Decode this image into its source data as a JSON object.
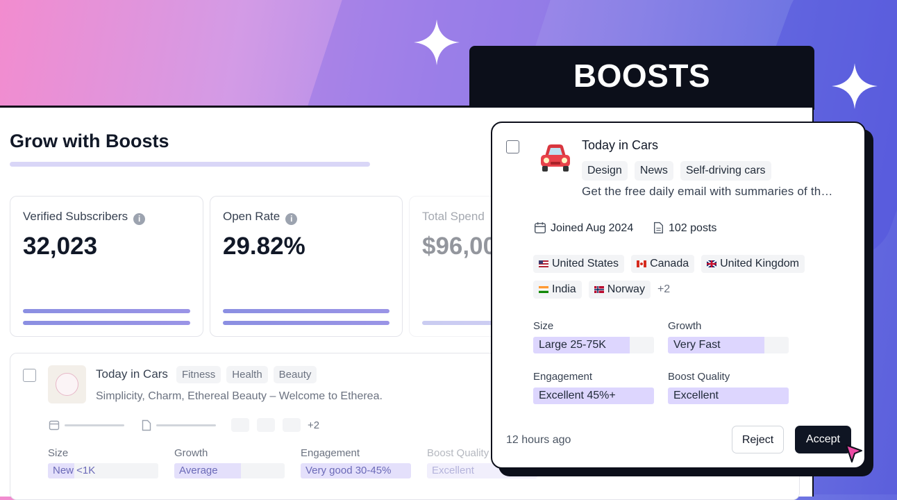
{
  "hero": {
    "badge": "BOOSTS"
  },
  "page": {
    "title": "Grow with Boosts"
  },
  "stats": [
    {
      "label": "Verified Subscribers",
      "value": "32,023"
    },
    {
      "label": "Open Rate",
      "value": "29.82%"
    },
    {
      "label": "Total Spend",
      "value": "$96,00"
    }
  ],
  "list_row": {
    "name": "Today in Cars",
    "tags": [
      "Fitness",
      "Health",
      "Beauty"
    ],
    "description": "Simplicity, Charm, Ethereal Beauty – Welcome to Etherea.",
    "more_countries": "+2",
    "metrics": [
      {
        "label": "Size",
        "value": "New <1K"
      },
      {
        "label": "Growth",
        "value": "Average"
      },
      {
        "label": "Engagement",
        "value": "Very good 30-45%"
      },
      {
        "label": "Boost Quality",
        "value": "Excellent"
      }
    ]
  },
  "card": {
    "name": "Today in Cars",
    "tags": [
      "Design",
      "News",
      "Self-driving cars"
    ],
    "description": "Get the free daily email with summaries of th…",
    "joined": "Joined Aug 2024",
    "posts": "102 posts",
    "countries": [
      "United States",
      "Canada",
      "United Kingdom",
      "India",
      "Norway"
    ],
    "more_countries": "+2",
    "metrics": [
      {
        "label": "Size",
        "value": "Large 25-75K"
      },
      {
        "label": "Growth",
        "value": "Very Fast"
      },
      {
        "label": "Engagement",
        "value": "Excellent 45%+"
      },
      {
        "label": "Boost Quality",
        "value": "Excellent"
      }
    ],
    "time": "12 hours ago",
    "reject": "Reject",
    "accept": "Accept"
  }
}
